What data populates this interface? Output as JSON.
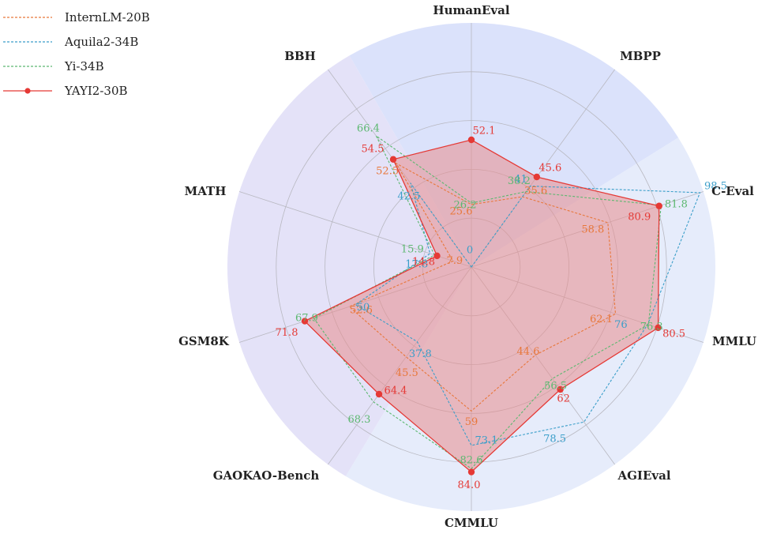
{
  "chart_data": {
    "type": "radar",
    "axes": [
      "HumanEval",
      "MBPP",
      "C-Eval",
      "MMLU",
      "AGIEval",
      "CMMLU",
      "GAOKAO-Bench",
      "GSM8K",
      "MATH",
      "BBH"
    ],
    "rlim": [
      0,
      100
    ],
    "grid": true,
    "legend_position": "top-left",
    "series": [
      {
        "name": "InternLM-20B",
        "color": "#e8773a",
        "style": "dashed",
        "values": [
          25.6,
          35.6,
          58.8,
          62.1,
          44.6,
          59,
          45.5,
          52.6,
          7.9,
          52.5
        ],
        "labels": [
          "25.6",
          "35.6",
          "58.8",
          "62.1",
          "44.6",
          "59",
          "45.5",
          "52.6",
          "7.9",
          "52.5"
        ]
      },
      {
        "name": "Aquila2-34B",
        "color": "#3a9ec9",
        "style": "dashed",
        "values": [
          0,
          41,
          98.5,
          76,
          78.5,
          73.1,
          37.8,
          50,
          17.8,
          42.5
        ],
        "labels": [
          "0",
          "41",
          "98.5",
          "76",
          "78.5",
          "73.1",
          "37.8",
          "50",
          "17.8",
          "42.5"
        ]
      },
      {
        "name": "Yi-34B",
        "color": "#5cb870",
        "style": "dashed",
        "values": [
          26.2,
          38.2,
          81.8,
          76.3,
          56.5,
          82.6,
          68.3,
          67.9,
          15.9,
          66.4
        ],
        "labels": [
          "26.2",
          "38.2",
          "81.8",
          "76.3",
          "56.5",
          "82.6",
          "68.3",
          "67.9",
          "15.9",
          "66.4"
        ]
      },
      {
        "name": "YAYI2-30B",
        "color": "#e53935",
        "style": "solid-marker-filled",
        "values": [
          52.1,
          45.6,
          80.9,
          80.5,
          62,
          84.0,
          64.4,
          71.8,
          14.8,
          54.5
        ],
        "labels": [
          "52.1",
          "45.6",
          "80.9",
          "80.5",
          "62",
          "84.0",
          "64.4",
          "71.8",
          "14.8",
          "54.5"
        ]
      }
    ],
    "background_sectors": [
      {
        "color": "#dbe2fb"
      },
      {
        "color": "#e6ecfb"
      },
      {
        "color": "#e4e2f8"
      }
    ],
    "fill_color": "#e88c8c"
  }
}
